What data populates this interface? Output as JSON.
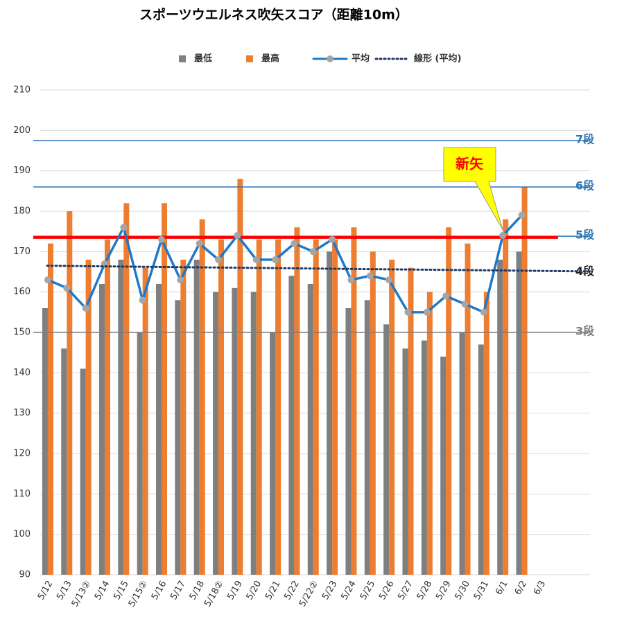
{
  "chart_data": {
    "type": "bar",
    "title": "スポーツウエルネス吹矢スコア（距離10m）",
    "categories": [
      "5/12",
      "5/13",
      "5/13②",
      "5/14",
      "5/15",
      "5/15②",
      "5/16",
      "5/17",
      "5/18",
      "5/18②",
      "5/19",
      "5/20",
      "5/21",
      "5/22",
      "5/22②",
      "5/23",
      "5/24",
      "5/25",
      "5/26",
      "5/27",
      "5/28",
      "5/29",
      "5/30",
      "5/31",
      "6/1",
      "6/2",
      "6/3",
      null,
      null
    ],
    "series": [
      {
        "name": "最低",
        "color": "#7f7f7f",
        "kind": "bar",
        "values": [
          156,
          146,
          141,
          162,
          168,
          150,
          162,
          158,
          168,
          160,
          161,
          160,
          150,
          164,
          162,
          170,
          156,
          158,
          152,
          146,
          148,
          144,
          150,
          147,
          168,
          170,
          null,
          null,
          null
        ]
      },
      {
        "name": "最高",
        "color": "#ed7d31",
        "kind": "bar",
        "values": [
          172,
          180,
          168,
          173,
          182,
          166,
          182,
          168,
          178,
          173,
          188,
          173,
          173,
          176,
          173,
          173,
          176,
          170,
          168,
          166,
          160,
          176,
          172,
          160,
          178,
          186,
          null,
          null,
          null
        ]
      },
      {
        "name": "平均",
        "color": "#1f78c8",
        "kind": "line",
        "values": [
          163,
          161,
          156,
          167,
          176,
          158,
          173,
          163,
          172,
          168,
          174,
          168,
          168,
          172,
          170,
          173,
          163,
          164,
          163,
          155,
          155,
          159,
          157,
          155,
          174,
          179,
          null,
          null,
          null
        ]
      },
      {
        "name": "線形 (平均)",
        "color": "#1f3864",
        "kind": "trend",
        "values": [
          166.5,
          166.45,
          166.4,
          166.35,
          166.3,
          166.25,
          166.2,
          166.15,
          166.1,
          166.05,
          166,
          165.95,
          165.9,
          165.85,
          165.8,
          165.75,
          165.7,
          165.65,
          165.6,
          165.55,
          165.5,
          165.45,
          165.4,
          165.35,
          165.3,
          165.25,
          165.2,
          165.15,
          165.1
        ]
      }
    ],
    "reference_lines": [
      {
        "label": "7段",
        "value": 197.5,
        "color": "#2e75b6",
        "line": true
      },
      {
        "label": "6段",
        "value": 186,
        "color": "#2e75b6",
        "line": true
      },
      {
        "label": "5段",
        "value": 173.8,
        "color": "#2e75b6",
        "line": true
      },
      {
        "value": 173.5,
        "color": "#ff0000",
        "line": true,
        "width": 4
      },
      {
        "label": "4段",
        "value": 165,
        "color": "#222222",
        "line": false
      },
      {
        "label": "3段",
        "value": 150,
        "color": "#7f7f7f",
        "line": true
      }
    ],
    "annotation": {
      "text": "新矢",
      "category": 24
    },
    "ylim": [
      90,
      210
    ],
    "yticks": [
      90,
      100,
      110,
      120,
      130,
      140,
      150,
      160,
      170,
      180,
      190,
      200,
      210
    ],
    "grid": true
  }
}
